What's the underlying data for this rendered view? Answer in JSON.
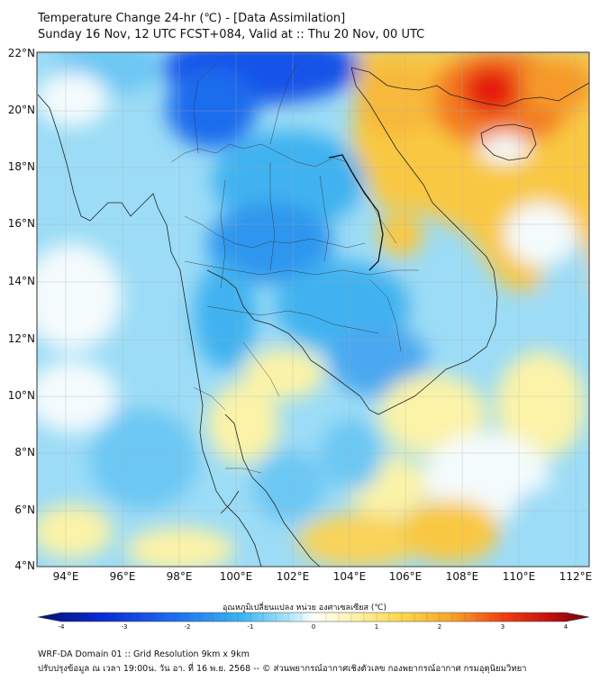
{
  "title": {
    "line1": "Temperature Change 24-hr (℃) - [Data Assimilation]",
    "line2": "Sunday 16 Nov, 12 UTC FCST+084, Valid at :: Thu 20 Nov, 00 UTC"
  },
  "map": {
    "lat_labels": [
      "22°N",
      "20°N",
      "18°N",
      "16°N",
      "14°N",
      "12°N",
      "10°N",
      "8°N",
      "6°N",
      "4°N"
    ],
    "lon_labels": [
      "94°E",
      "96°E",
      "98°E",
      "100°E",
      "102°E",
      "104°E",
      "106°E",
      "108°E",
      "110°E",
      "112°E"
    ],
    "extent": {
      "lon": [
        93,
        112.5
      ],
      "lat": [
        4,
        22.2
      ]
    },
    "colors": {
      "strong_cool": "#0a3ee0",
      "cool": "#3fb2f0",
      "light_cool": "#a6e2fa",
      "neutral": "#f4fbfd",
      "light_warm": "#fbf3a8",
      "warm": "#f9c842",
      "strong_warm": "#f16a1c",
      "hot": "#e51a10"
    }
  },
  "colorbar": {
    "title": "อุณหภูมิเปลี่ยนแปลง หน่วย องศาเซลเซียส (℃)",
    "ticks": [
      "-4",
      "-3",
      "-2",
      "-1",
      "0",
      "1",
      "2",
      "3",
      "4"
    ],
    "range": [
      -4,
      4
    ]
  },
  "footer": {
    "line1": "WRF-DA Domain 01 :: Grid Resolution 9km x 9km",
    "line2": "ปรับปรุงข้อมูล ณ เวลา 19:00น. วัน อา. ที่ 16 พ.ย. 2568 -- © ส่วนพยากรณ์อากาศเชิงตัวเลข กองพยากรณ์อากาศ กรมอุตุนิยมวิทยา"
  }
}
